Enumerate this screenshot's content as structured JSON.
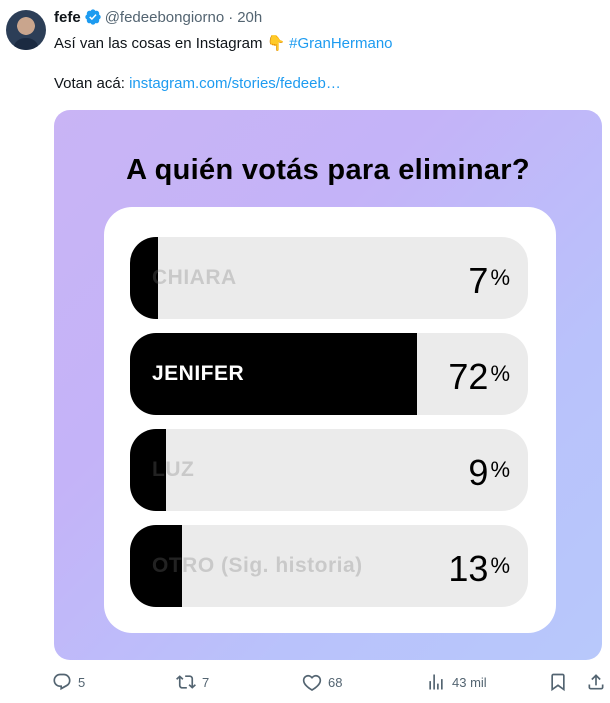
{
  "tweet": {
    "name": "fefe",
    "handle": "@fedeebongiorno",
    "separator": "·",
    "time": "20h",
    "text_line1": "Así van las cosas en Instagram",
    "emoji": "👇",
    "hashtag": "#GranHermano",
    "text_line2_prefix": "Votan acá:",
    "link": "instagram.com/stories/fedeeb…"
  },
  "poll": {
    "title": "A quién votás para eliminar?",
    "options": [
      {
        "label": "CHIARA",
        "percent": 7
      },
      {
        "label": "JENIFER",
        "percent": 72
      },
      {
        "label": "LUZ",
        "percent": 9
      },
      {
        "label": "OTRO (Sig. historia)",
        "percent": 13
      }
    ],
    "percent_symbol": "%"
  },
  "actions": {
    "replies": "5",
    "retweets": "7",
    "likes": "68",
    "views": "43 mil"
  },
  "colors": {
    "link": "#1d9bf0",
    "verified": "#1d9bf0",
    "bar_fill": "#000000",
    "bar_bg": "#ebebeb"
  }
}
